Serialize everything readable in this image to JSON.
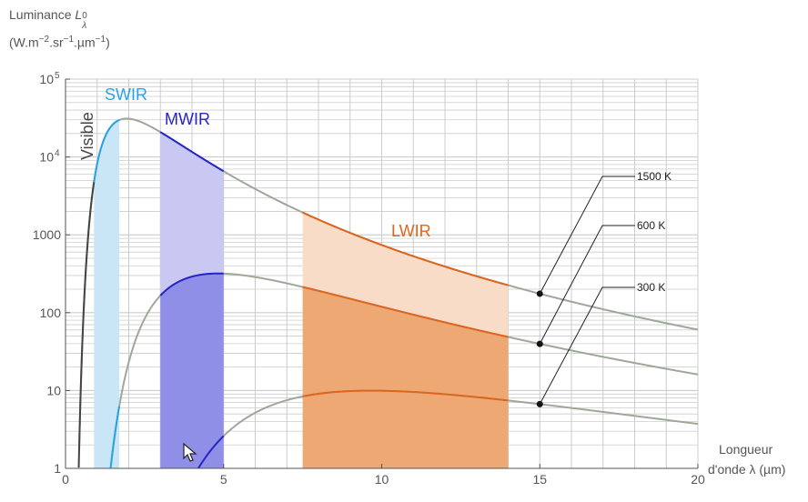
{
  "y_axis_label": {
    "line1_prefix": "Luminance ",
    "symbol": "L",
    "sup": "0",
    "sub": "λ",
    "line2": "(W.m",
    "e1": "−2",
    "mid": ".sr",
    "e2": "−1",
    "mid2": ".µm",
    "e3": "−1",
    "end": ")"
  },
  "x_axis_label": {
    "line1": "Longueur",
    "line2": "d'onde λ (µm)"
  },
  "colors": {
    "grid": "#cccccc",
    "axis": "#555555",
    "curve": "#9ea89a",
    "visible": "#444444",
    "swir": "#29a3e6",
    "swir_fill": "#c9e6f7",
    "mwir": "#2424c8",
    "mwir_fill_light": "#c8c8f2",
    "mwir_fill_dark": "#8f8fe8",
    "lwir": "#e0641c",
    "lwir_fill_light": "#f8dcc8",
    "lwir_fill_dark": "#eea874",
    "marker": "#111111"
  },
  "chart_data": {
    "type": "line",
    "xlim": [
      0,
      20
    ],
    "ylim": [
      1,
      100000
    ],
    "y_scale": "log",
    "grid": true,
    "x_ticks": [
      0,
      5,
      10,
      15,
      20
    ],
    "y_ticks": [
      {
        "v": 1,
        "label": "1"
      },
      {
        "v": 10,
        "label": "10"
      },
      {
        "v": 100,
        "label": "100"
      },
      {
        "v": 1000,
        "label": "1000"
      },
      {
        "v": 10000,
        "label": "10",
        "exp": "4"
      },
      {
        "v": 100000,
        "label": "10",
        "exp": "5"
      }
    ],
    "series": [
      {
        "name": "1500 K",
        "temperature_K": 1500,
        "label_value_at_15um": 175
      },
      {
        "name": "600 K",
        "temperature_K": 600,
        "label_value_at_15um": 40
      },
      {
        "name": "300 K",
        "temperature_K": 300,
        "label_value_at_15um": 6.7
      }
    ],
    "bands": [
      {
        "name": "Visible",
        "range_um": [
          0.4,
          0.8
        ]
      },
      {
        "name": "SWIR",
        "range_um": [
          0.9,
          1.7
        ]
      },
      {
        "name": "MWIR",
        "range_um": [
          3,
          5
        ]
      },
      {
        "name": "LWIR",
        "range_um": [
          7.5,
          14
        ]
      }
    ],
    "markers_x": 15
  }
}
